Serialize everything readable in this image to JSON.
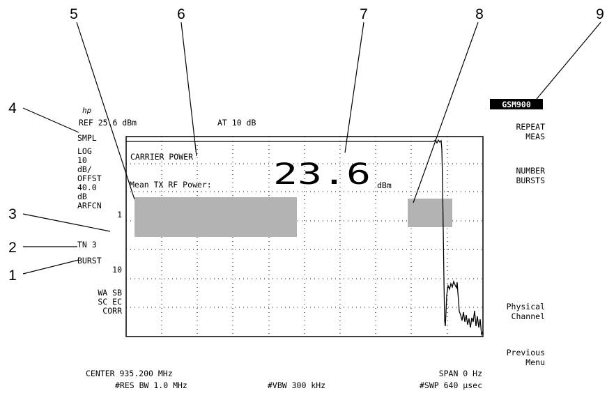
{
  "logo": "hp",
  "header": {
    "ref_level": "REF 25.6 dBm",
    "attenuation": "AT 10 dB"
  },
  "left_annotations": [
    "SMPL",
    "LOG",
    "10",
    "dB/",
    "OFFST",
    "40.0",
    "dB",
    "ARFCN",
    "1",
    "TN 3",
    "BURST",
    "10",
    "WA SB",
    "SC EC",
    "CORR"
  ],
  "screen": {
    "title": "CARRIER POWER",
    "result_label": "Mean TX RF Power:",
    "result_value": "23.6",
    "result_unit": "dBm"
  },
  "softkeys": {
    "mode": "GSM900",
    "repeat_meas": [
      "REPEAT",
      "MEAS"
    ],
    "number_bursts": [
      "NUMBER",
      "BURSTS"
    ],
    "physical_channel": [
      "Physical",
      "Channel"
    ],
    "previous_menu": [
      "Previous",
      "Menu"
    ]
  },
  "footer": {
    "center": "CENTER 935.200 MHz",
    "span": "SPAN 0 Hz",
    "res_bw": "#RES BW 1.0 MHz",
    "vbw": "#VBW 300 kHz",
    "sweep": "#SWP 640 µsec"
  },
  "callouts": [
    "1",
    "2",
    "3",
    "4",
    "5",
    "6",
    "7",
    "8",
    "9"
  ],
  "colors": {
    "ink": "#000000",
    "masked_region": "#b3b3b3",
    "mode_badge_bg": "#000000",
    "mode_badge_fg": "#ffffff"
  }
}
